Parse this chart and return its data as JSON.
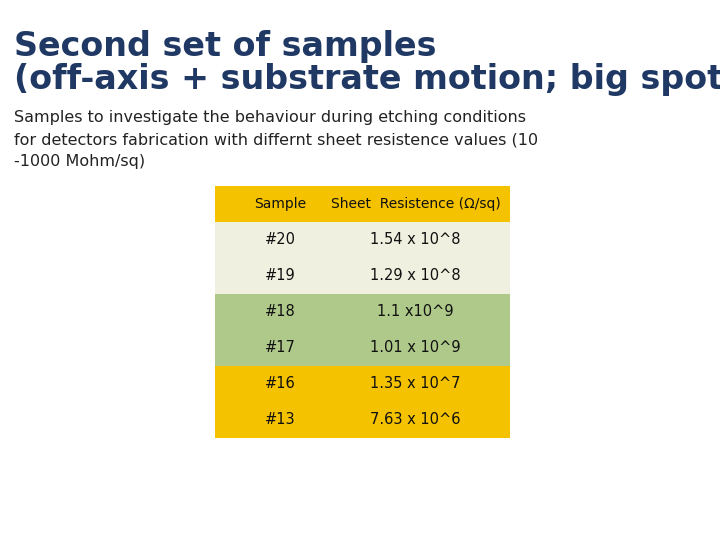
{
  "title_line1": "Second set of samples",
  "title_line2": "(off-axis + substrate motion; big spot area)",
  "title_color": "#1f3864",
  "body_text": "Samples to investigate the behaviour during etching conditions\nfor detectors fabrication with differnt sheet resistence values (10\n-1000 Mohm/sq)",
  "body_color": "#222222",
  "table_header_col1": "Sample",
  "table_header_col2": "Sheet  Resistence (Ω/sq)",
  "table_rows": [
    {
      "sample": "#20",
      "value": "1.54 x 10^8",
      "bg": "#f0f0e0"
    },
    {
      "sample": "#19",
      "value": "1.29 x 10^8",
      "bg": "#f0f0e0"
    },
    {
      "sample": "#18",
      "value": "1.1 x10^9",
      "bg": "#aec98a"
    },
    {
      "sample": "#17",
      "value": "1.01 x 10^9",
      "bg": "#aec98a"
    },
    {
      "sample": "#16",
      "value": "1.35 x 10^7",
      "bg": "#f5c200"
    },
    {
      "sample": "#13",
      "value": "7.63 x 10^6",
      "bg": "#f5c200"
    }
  ],
  "header_bg": "#f5c200",
  "bg_color": "#ffffff",
  "title1_fontsize": 24,
  "title2_fontsize": 24,
  "body_fontsize": 11.5
}
